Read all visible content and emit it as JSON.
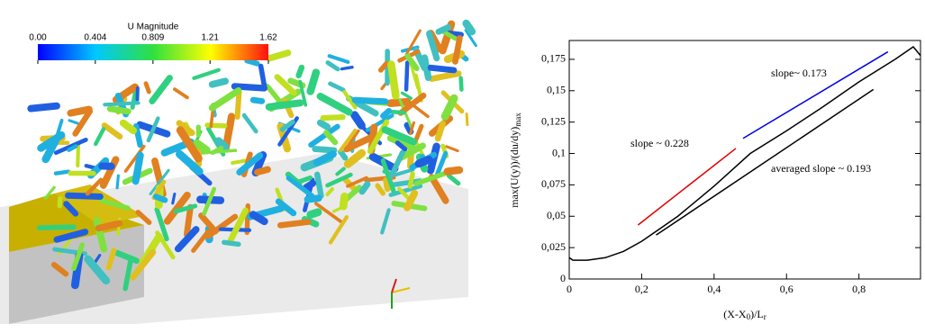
{
  "render": {
    "colorbar": {
      "title": "U Magnitude",
      "ticks": [
        {
          "value": 0,
          "label": "0.00"
        },
        0.404,
        0.809,
        1.21,
        1.62
      ]
    }
  },
  "chart_data": {
    "type": "line",
    "xlabel": [
      "(X-X",
      "0",
      ")/L",
      "r"
    ],
    "ylabel": [
      "max(U(y))/(du/dy)",
      "max"
    ],
    "xlim": [
      0,
      0.97
    ],
    "ylim": [
      0,
      0.19
    ],
    "xticks": [
      0,
      {
        "value": 0.2,
        "label": "0,2"
      },
      {
        "value": 0.4,
        "label": "0,4"
      },
      {
        "value": 0.6,
        "label": "0,6"
      },
      {
        "value": 0.8,
        "label": "0,8"
      }
    ],
    "yticks": [
      0,
      {
        "value": 0.025,
        "label": "0,025"
      },
      {
        "value": 0.05,
        "label": "0,05"
      },
      {
        "value": 0.075,
        "label": "0,075"
      },
      {
        "value": 0.1,
        "label": "0,1"
      },
      {
        "value": 0.125,
        "label": "0,125"
      },
      {
        "value": 0.15,
        "label": "0,15"
      },
      {
        "value": 0.175,
        "label": "0,175"
      }
    ],
    "series": [
      {
        "color": "#000000",
        "x": [
          0,
          0.01,
          0.05,
          0.1,
          0.15,
          0.2,
          0.25,
          0.3,
          0.35,
          0.4,
          0.45,
          0.5,
          0.6,
          0.7,
          0.8,
          0.9,
          0.95,
          0.97
        ],
        "values": [
          0.017,
          0.015,
          0.015,
          0.017,
          0.022,
          0.03,
          0.04,
          0.05,
          0.062,
          0.074,
          0.087,
          0.1,
          0.118,
          0.137,
          0.157,
          0.175,
          0.185,
          0.178
        ]
      },
      {
        "color": "#e00000",
        "x": [
          0.19,
          0.46
        ],
        "values": [
          0.043,
          0.104
        ]
      },
      {
        "color": "#0000e0",
        "x": [
          0.48,
          0.88
        ],
        "values": [
          0.112,
          0.181
        ]
      },
      {
        "color": "#000000",
        "x": [
          0.24,
          0.84
        ],
        "values": [
          0.035,
          0.151
        ]
      }
    ],
    "annotations": [
      "slope ~ 0.228",
      "slope~ 0.173",
      "averaged slope ~ 0.193"
    ]
  }
}
